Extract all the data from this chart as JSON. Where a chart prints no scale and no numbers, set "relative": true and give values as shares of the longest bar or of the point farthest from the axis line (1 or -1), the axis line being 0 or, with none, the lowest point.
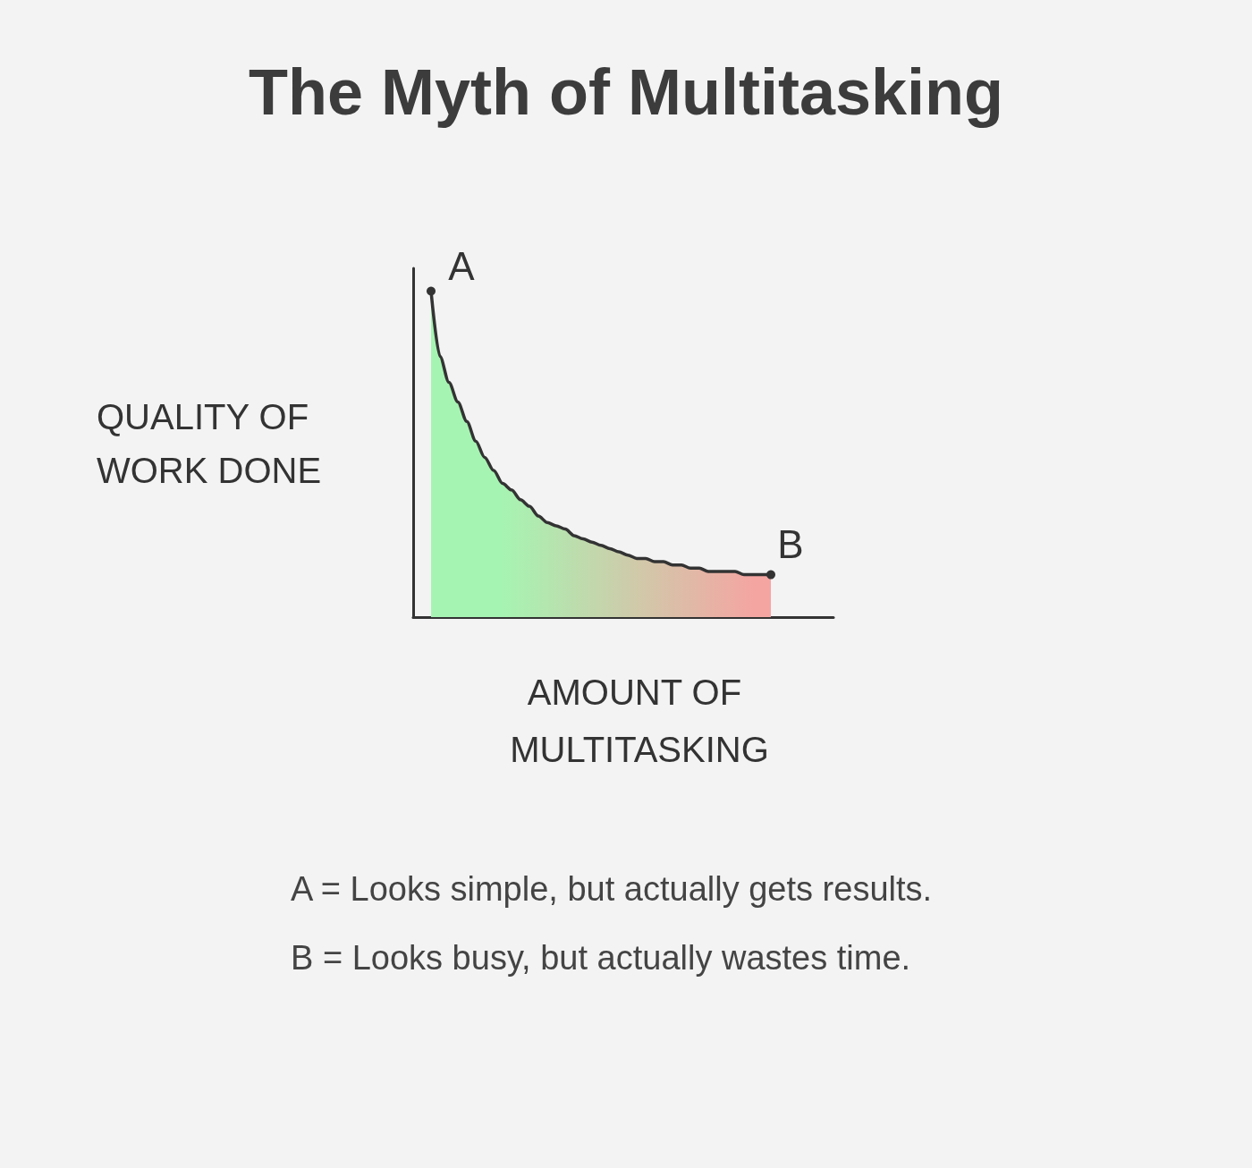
{
  "chart_data": {
    "type": "area",
    "title": "The Myth of Multitasking",
    "xlabel": "AMOUNT OF MULTITASKING",
    "ylabel": "QUALITY OF WORK DONE",
    "relative": true,
    "marker": "none",
    "categories": [
      null,
      null,
      null,
      null,
      null,
      null,
      null,
      null,
      null,
      null,
      null,
      null,
      null,
      null,
      null,
      null,
      null,
      null,
      null,
      null,
      null,
      null,
      null,
      null,
      null,
      null,
      null,
      null,
      null,
      null,
      null,
      null,
      null,
      null,
      null,
      null,
      null,
      null,
      null,
      null,
      null,
      null,
      null,
      null,
      null,
      null,
      null,
      null
    ],
    "series": [
      {
        "color": "#333333",
        "values": [
          null,
          null,
          1,
          0.8,
          0.72,
          0.66,
          0.6,
          0.54,
          0.49,
          0.45,
          0.41,
          0.39,
          0.36,
          0.34,
          0.31,
          0.29,
          0.28,
          0.27,
          0.25,
          0.24,
          0.23,
          0.22,
          0.21,
          0.2,
          0.19,
          0.18,
          0.18,
          0.17,
          0.17,
          0.16,
          0.16,
          0.15,
          0.15,
          0.14,
          0.14,
          0.14,
          0.14,
          0.13,
          0.13,
          0.13,
          0.13,
          null,
          null,
          null,
          null,
          null,
          null,
          null
        ],
        "colors": [
          null,
          null,
          "#a6f4b2",
          "#a6f4b2",
          "#a6f4b2",
          "#a6f4b2",
          "#a6f4b2",
          "#a6f4b2",
          "#a6f4b2",
          "#a6f4b2",
          "#a6f4b2",
          "#a9f1b1",
          "#aceeb1",
          "#aeecb0",
          "#b1e9b0",
          "#b4e6af",
          "#b7e3af",
          "#b9e0ae",
          "#bcddad",
          "#bfdbad",
          "#c2d8ac",
          "#c5d5ac",
          "#c7d2ab",
          "#cacfab",
          "#cdccaa",
          "#d0caa9",
          "#d3c7a9",
          "#d5c4a8",
          "#d8c1a8",
          "#dbbea7",
          "#debca7",
          "#e0b9a6",
          "#e3b6a5",
          "#e6b3a5",
          "#e9b0a4",
          "#ecaea4",
          "#eeaba3",
          "#f1a8a3",
          "#f4a5a2",
          "#f4a5a2",
          "#f4a5a2",
          null,
          null,
          null,
          null,
          null,
          null,
          null
        ]
      }
    ],
    "annotations": [
      "A",
      "B",
      "A = Looks simple, but actually gets results.",
      "B = Looks busy, but actually wastes time."
    ]
  }
}
